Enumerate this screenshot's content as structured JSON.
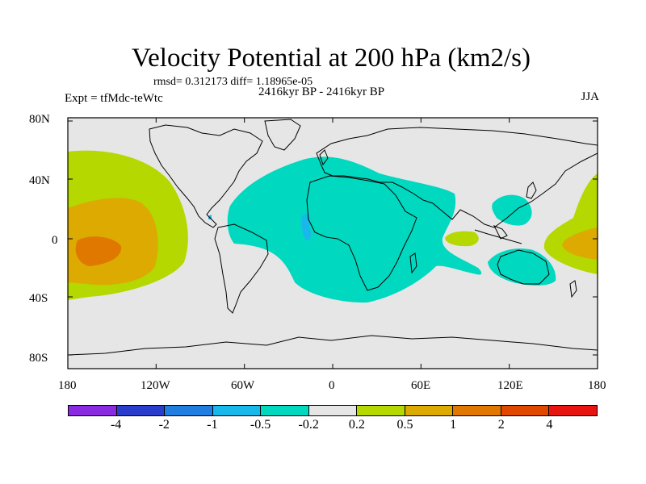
{
  "title": "Velocity Potential at 200 hPa (km2/s)",
  "stats": "rmsd= 0.312173 diff= 1.18965e-05",
  "expt": "Expt = tfMdc-teWtc",
  "period": "2416kyr BP - 2416kyr BP",
  "season": "JJA",
  "map": {
    "ocean_color": "#e6e6e6",
    "coastline_color": "#000000",
    "y_ticks": [
      "80N",
      "40N",
      "0",
      "40S",
      "80S"
    ],
    "x_ticks": [
      "180",
      "120W",
      "60W",
      "0",
      "60E",
      "120E",
      "180"
    ]
  },
  "legend": {
    "colors": [
      "#8a2be2",
      "#2a3ccc",
      "#1f7ee0",
      "#18b8ea",
      "#00d8c0",
      "#e6e6e6",
      "#b4d800",
      "#dcaa00",
      "#e07800",
      "#e04800",
      "#e81410"
    ],
    "labels": [
      "-4",
      "-2",
      "-1",
      "-0.5",
      "-0.2",
      "0.2",
      "0.5",
      "1",
      "2",
      "4"
    ]
  }
}
